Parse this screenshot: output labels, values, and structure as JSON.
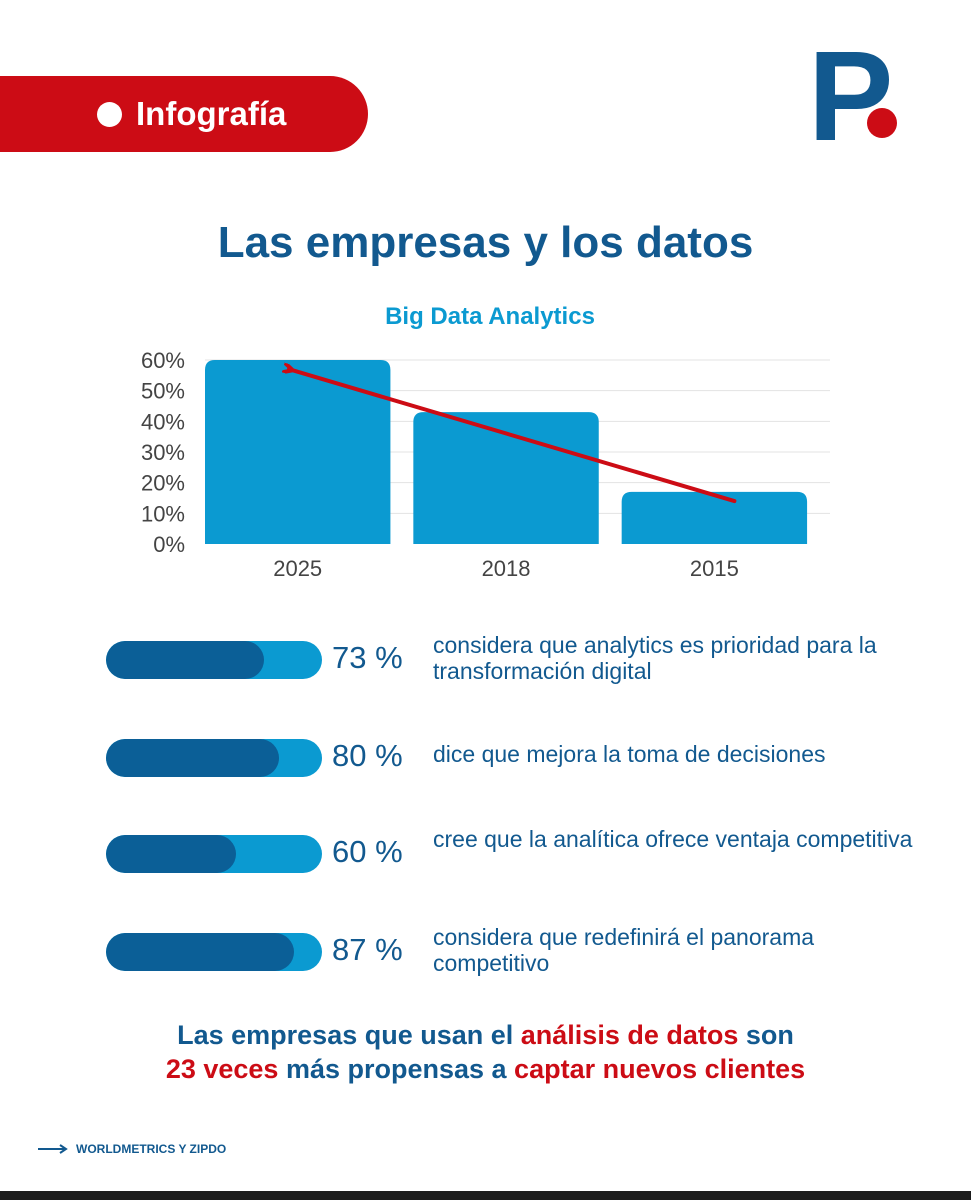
{
  "header": {
    "tag_label": "Infografía",
    "logo_letter": "P",
    "logo_dot_color": "#cc0c15",
    "logo_color": "#12598f"
  },
  "main_title": "Las empresas y los datos",
  "chart_data": {
    "type": "bar",
    "title": "Big Data Analytics",
    "xlabel": "",
    "ylabel": "",
    "categories": [
      "2025",
      "2018",
      "2015"
    ],
    "values": [
      60,
      43,
      17
    ],
    "ylim": [
      0,
      60
    ],
    "yticks": [
      "0%",
      "10%",
      "20%",
      "30%",
      "40%",
      "50%",
      "60%"
    ],
    "grid": true,
    "bar_color": "#0b9ad1",
    "trend_arrow": {
      "from_category": "2015",
      "from_value": 14,
      "to_category": "2025",
      "to_value": 57,
      "color": "#cc0c15"
    }
  },
  "stats": [
    {
      "value": 73,
      "label": "73 %",
      "text": "considera que analytics es prioridad para la transformación digital"
    },
    {
      "value": 80,
      "label": "80 %",
      "text": "dice que mejora la toma de decisiones"
    },
    {
      "value": 60,
      "label": "60 %",
      "text": "cree que la analítica ofrece ventaja competitiva"
    },
    {
      "value": 87,
      "label": "87 %",
      "text": "considera que redefinirá el panorama competitivo"
    }
  ],
  "conclusion": {
    "part1": "Las empresas que usan el ",
    "part2": "análisis de datos",
    "part3": " son",
    "part4": "23 veces",
    "part5": " más propensas a ",
    "part6": "captar nuevos clientes"
  },
  "source": "WORLDMETRICS Y ZIPDO",
  "colors": {
    "brand_blue": "#12598f",
    "bar_light": "#0b9ad1",
    "bar_dark": "#0b5f97",
    "accent_red": "#cc0c15"
  }
}
